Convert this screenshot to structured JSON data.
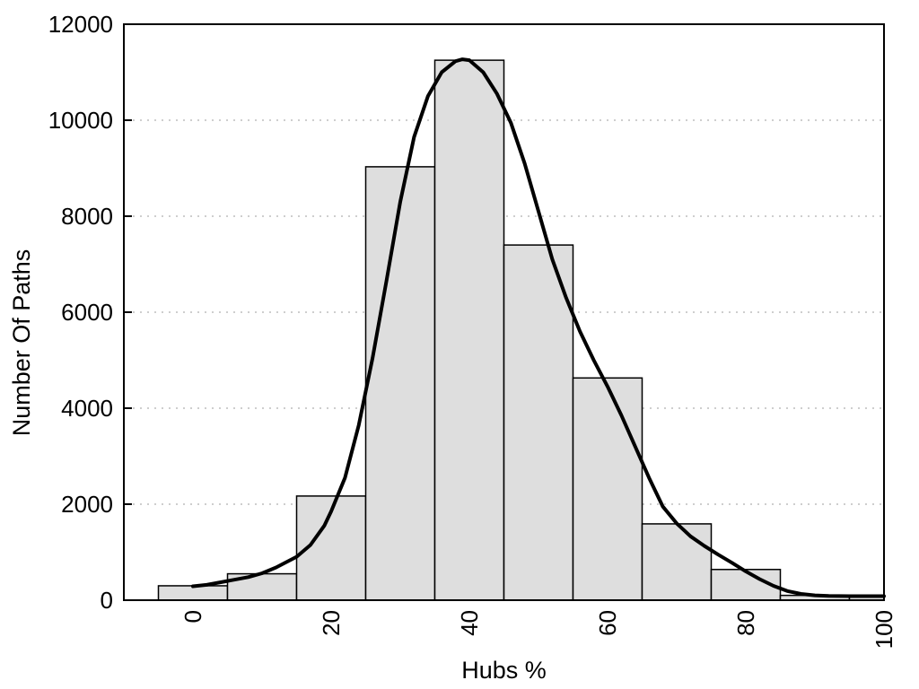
{
  "chart_data": {
    "type": "bar",
    "subtype": "histogram-with-density-curve",
    "title": "",
    "xlabel": "Hubs %",
    "ylabel": "Number Of Paths",
    "xlim": [
      -10,
      100
    ],
    "ylim": [
      0,
      12000
    ],
    "x_ticks": [
      0,
      20,
      40,
      60,
      80,
      100
    ],
    "y_ticks": [
      0,
      2000,
      4000,
      6000,
      8000,
      10000,
      12000
    ],
    "x_tick_labels_rotated_degrees": 90,
    "grid": "horizontal-dotted",
    "legend": "none",
    "bin_width": 10,
    "categories": [
      0,
      10,
      20,
      30,
      40,
      50,
      60,
      70,
      80,
      90,
      100
    ],
    "values": [
      300,
      550,
      2170,
      9030,
      11250,
      7400,
      4630,
      1590,
      640,
      100,
      90
    ],
    "curve_points": [
      [
        0,
        290
      ],
      [
        2,
        320
      ],
      [
        5,
        400
      ],
      [
        8,
        480
      ],
      [
        10,
        560
      ],
      [
        12,
        680
      ],
      [
        15,
        905
      ],
      [
        17,
        1150
      ],
      [
        19,
        1550
      ],
      [
        20,
        1850
      ],
      [
        22,
        2550
      ],
      [
        24,
        3650
      ],
      [
        26,
        5050
      ],
      [
        28,
        6650
      ],
      [
        30,
        8300
      ],
      [
        32,
        9650
      ],
      [
        34,
        10500
      ],
      [
        36,
        11000
      ],
      [
        38,
        11230
      ],
      [
        39,
        11270
      ],
      [
        40,
        11250
      ],
      [
        42,
        11000
      ],
      [
        44,
        10550
      ],
      [
        46,
        9950
      ],
      [
        48,
        9100
      ],
      [
        50,
        8100
      ],
      [
        52,
        7100
      ],
      [
        54,
        6300
      ],
      [
        56,
        5600
      ],
      [
        58,
        5000
      ],
      [
        60,
        4450
      ],
      [
        62,
        3850
      ],
      [
        64,
        3200
      ],
      [
        66,
        2550
      ],
      [
        68,
        1950
      ],
      [
        70,
        1600
      ],
      [
        72,
        1330
      ],
      [
        74,
        1130
      ],
      [
        76,
        950
      ],
      [
        78,
        780
      ],
      [
        80,
        600
      ],
      [
        82,
        440
      ],
      [
        84,
        300
      ],
      [
        86,
        190
      ],
      [
        88,
        130
      ],
      [
        90,
        100
      ],
      [
        92,
        88
      ],
      [
        95,
        85
      ],
      [
        100,
        85
      ]
    ],
    "colors": {
      "background": "#ffffff",
      "bar_fill": "#dedede",
      "bar_border": "#000000",
      "curve": "#000000",
      "axis": "#000000",
      "grid": "#bdbdbd",
      "text": "#000000"
    }
  }
}
